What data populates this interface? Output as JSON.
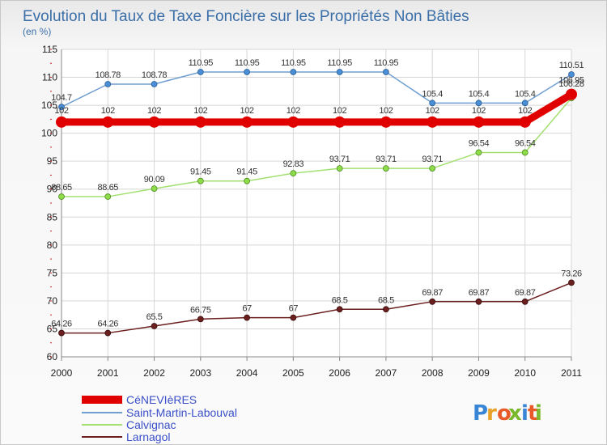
{
  "chart_data": {
    "type": "line",
    "title": "Evolution du Taux de Taxe Foncière sur les Propriétés Non Bâties",
    "subtitle": "(en %)",
    "xlabel": "",
    "ylabel": "",
    "categories": [
      "2000",
      "2001",
      "2002",
      "2003",
      "2004",
      "2005",
      "2006",
      "2007",
      "2008",
      "2009",
      "2010",
      "2011"
    ],
    "ylim": [
      60,
      115
    ],
    "yticks": [
      60,
      65,
      70,
      75,
      80,
      85,
      90,
      95,
      100,
      105,
      110,
      115
    ],
    "grid": true,
    "legend_position": "bottom-left",
    "series": [
      {
        "name": "CéNEVIèRES",
        "color": "#e00000",
        "values": [
          102,
          102,
          102,
          102,
          102,
          102,
          102,
          102,
          102,
          102,
          102,
          106.95
        ],
        "labels": [
          "102",
          "102",
          "102",
          "102",
          "102",
          "102",
          "102",
          "102",
          "102",
          "102",
          "102",
          "106.95"
        ]
      },
      {
        "name": "Saint-Martin-Labouval",
        "color": "#6f9ed0",
        "values": [
          104.7,
          108.78,
          108.78,
          110.95,
          110.95,
          110.95,
          110.95,
          110.95,
          105.4,
          105.4,
          105.4,
          110.51
        ],
        "labels": [
          "104.7",
          "108.78",
          "108.78",
          "110.95",
          "110.95",
          "110.95",
          "110.95",
          "110.95",
          "105.4",
          "105.4",
          "105.4",
          "110.51"
        ]
      },
      {
        "name": "Calvignac",
        "color": "#a3e070",
        "values": [
          88.65,
          88.65,
          90.09,
          91.45,
          91.45,
          92.83,
          93.71,
          93.71,
          93.71,
          96.54,
          96.54,
          106.28
        ],
        "labels": [
          "88.65",
          "88.65",
          "90.09",
          "91.45",
          "91.45",
          "92.83",
          "93.71",
          "93.71",
          "93.71",
          "96.54",
          "96.54",
          "106.28"
        ]
      },
      {
        "name": "Larnagol",
        "color": "#6b1f1f",
        "values": [
          64.26,
          64.26,
          65.5,
          66.75,
          67,
          67,
          68.5,
          68.5,
          69.87,
          69.87,
          69.87,
          73.26
        ],
        "labels": [
          "64.26",
          "64.26",
          "65.5",
          "66.75",
          "67",
          "67",
          "68.5",
          "68.5",
          "69.87",
          "69.87",
          "69.87",
          "73.26"
        ]
      }
    ]
  },
  "watermark": {
    "text": "Proxiti",
    "colors": [
      "#3a86d6",
      "#e8a22a",
      "#e85a2a",
      "#7ab82e",
      "#3a86d6",
      "#e85a2a",
      "#7ab82e"
    ]
  }
}
